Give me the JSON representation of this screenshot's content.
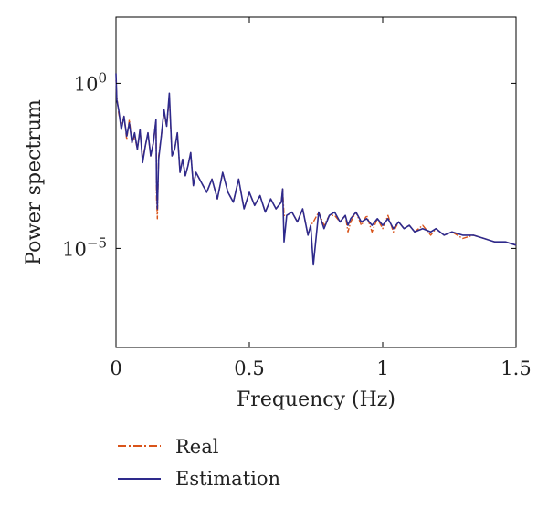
{
  "chart_data": {
    "type": "line",
    "title": "",
    "xlabel": "Frequency (Hz)",
    "ylabel": "Power spectrum",
    "xlim": [
      0,
      1.5
    ],
    "ylim_log10": [
      -8,
      2
    ],
    "yscale": "log",
    "grid": false,
    "legend_placement": "below",
    "x_ticks": [
      {
        "value": 0,
        "label": "0"
      },
      {
        "value": 0.5,
        "label": "0.5"
      },
      {
        "value": 1,
        "label": "1"
      },
      {
        "value": 1.5,
        "label": "1.5"
      }
    ],
    "y_ticks": [
      {
        "log10": 0,
        "base": "10",
        "exp": "0"
      },
      {
        "log10": -5,
        "base": "10",
        "exp": "−5"
      }
    ],
    "series": [
      {
        "name": "Real",
        "color": "#d9541a",
        "style": "dashdot",
        "x": [
          0.0,
          0.003,
          0.01,
          0.02,
          0.03,
          0.04,
          0.05,
          0.06,
          0.07,
          0.08,
          0.09,
          0.1,
          0.11,
          0.12,
          0.13,
          0.14,
          0.15,
          0.152,
          0.155,
          0.16,
          0.17,
          0.18,
          0.19,
          0.2,
          0.21,
          0.22,
          0.23,
          0.24,
          0.25,
          0.26,
          0.27,
          0.28,
          0.29,
          0.3,
          0.32,
          0.34,
          0.36,
          0.38,
          0.4,
          0.42,
          0.44,
          0.46,
          0.48,
          0.5,
          0.52,
          0.54,
          0.56,
          0.58,
          0.6,
          0.62,
          0.625,
          0.63,
          0.64,
          0.66,
          0.68,
          0.7,
          0.72,
          0.73,
          0.74,
          0.76,
          0.78,
          0.8,
          0.82,
          0.84,
          0.86,
          0.87,
          0.88,
          0.9,
          0.92,
          0.94,
          0.96,
          0.98,
          1.0,
          1.02,
          1.04,
          1.06,
          1.08,
          1.1,
          1.12,
          1.15,
          1.18,
          1.2,
          1.23,
          1.26,
          1.3,
          1.34,
          1.38,
          1.42,
          1.46,
          1.5
        ],
        "y_log10": [
          0.1,
          -0.4,
          -0.9,
          -1.3,
          -1.0,
          -1.7,
          -1.1,
          -1.8,
          -1.6,
          -2.0,
          -1.4,
          -2.3,
          -1.9,
          -1.5,
          -2.2,
          -1.8,
          -1.1,
          -3.5,
          -4.1,
          -2.2,
          -1.6,
          -0.9,
          -1.3,
          -0.4,
          -2.2,
          -2.0,
          -1.5,
          -2.7,
          -2.3,
          -2.8,
          -2.5,
          -2.1,
          -3.1,
          -2.7,
          -3.0,
          -3.3,
          -2.9,
          -3.5,
          -2.7,
          -3.3,
          -3.6,
          -2.9,
          -3.8,
          -3.3,
          -3.7,
          -3.4,
          -3.9,
          -3.5,
          -3.8,
          -3.6,
          -3.2,
          -4.0,
          -4.0,
          -3.9,
          -4.2,
          -3.8,
          -4.6,
          -4.3,
          -4.2,
          -3.9,
          -4.3,
          -4.0,
          -4.0,
          -4.2,
          -4.0,
          -4.5,
          -4.2,
          -3.9,
          -4.3,
          -4.0,
          -4.5,
          -4.1,
          -4.4,
          -4.0,
          -4.5,
          -4.2,
          -4.4,
          -4.3,
          -4.5,
          -4.3,
          -4.6,
          -4.4,
          -4.6,
          -4.5,
          -4.7,
          -4.6,
          -4.7,
          -4.8,
          -4.8,
          -4.9
        ]
      },
      {
        "name": "Estimation",
        "color": "#2e2a8c",
        "style": "solid",
        "x": [
          0.0,
          0.003,
          0.01,
          0.02,
          0.03,
          0.04,
          0.05,
          0.06,
          0.07,
          0.08,
          0.09,
          0.1,
          0.11,
          0.12,
          0.13,
          0.14,
          0.15,
          0.152,
          0.155,
          0.16,
          0.17,
          0.18,
          0.19,
          0.2,
          0.21,
          0.22,
          0.23,
          0.24,
          0.25,
          0.26,
          0.27,
          0.28,
          0.29,
          0.3,
          0.32,
          0.34,
          0.36,
          0.38,
          0.4,
          0.42,
          0.44,
          0.46,
          0.48,
          0.5,
          0.52,
          0.54,
          0.56,
          0.58,
          0.6,
          0.62,
          0.625,
          0.63,
          0.64,
          0.66,
          0.68,
          0.7,
          0.72,
          0.73,
          0.74,
          0.76,
          0.78,
          0.8,
          0.82,
          0.84,
          0.86,
          0.87,
          0.88,
          0.9,
          0.92,
          0.94,
          0.96,
          0.98,
          1.0,
          1.02,
          1.04,
          1.06,
          1.08,
          1.1,
          1.12,
          1.15,
          1.18,
          1.2,
          1.23,
          1.26,
          1.3,
          1.34,
          1.38,
          1.42,
          1.46,
          1.5
        ],
        "y_log10": [
          0.3,
          -0.5,
          -0.8,
          -1.4,
          -1.0,
          -1.6,
          -1.2,
          -1.8,
          -1.5,
          -2.0,
          -1.4,
          -2.4,
          -1.9,
          -1.5,
          -2.2,
          -1.8,
          -1.1,
          -3.0,
          -3.8,
          -2.3,
          -1.6,
          -0.8,
          -1.3,
          -0.3,
          -2.2,
          -2.0,
          -1.5,
          -2.7,
          -2.3,
          -2.8,
          -2.5,
          -2.1,
          -3.1,
          -2.7,
          -3.0,
          -3.3,
          -2.9,
          -3.5,
          -2.7,
          -3.3,
          -3.6,
          -2.9,
          -3.8,
          -3.3,
          -3.7,
          -3.4,
          -3.9,
          -3.5,
          -3.8,
          -3.6,
          -3.2,
          -4.8,
          -4.0,
          -3.9,
          -4.2,
          -3.8,
          -4.6,
          -4.3,
          -5.5,
          -3.9,
          -4.4,
          -4.0,
          -3.9,
          -4.2,
          -4.0,
          -4.3,
          -4.1,
          -3.9,
          -4.2,
          -4.1,
          -4.3,
          -4.1,
          -4.3,
          -4.1,
          -4.4,
          -4.2,
          -4.4,
          -4.3,
          -4.5,
          -4.4,
          -4.5,
          -4.4,
          -4.6,
          -4.5,
          -4.6,
          -4.6,
          -4.7,
          -4.8,
          -4.8,
          -4.9
        ]
      }
    ]
  }
}
